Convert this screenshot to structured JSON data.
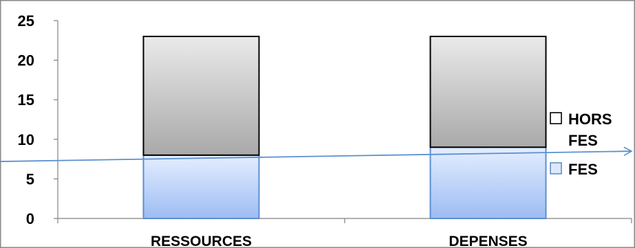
{
  "chart_data": {
    "type": "bar",
    "stacked": true,
    "categories": [
      "RESSOURCES",
      "DEPENSES"
    ],
    "series": [
      {
        "name": "FES",
        "values": [
          8,
          9
        ],
        "color": "#a9c6f5"
      },
      {
        "name": "HORS FES",
        "values": [
          15,
          14
        ],
        "color": "#bdbdbd"
      }
    ],
    "title": "",
    "xlabel": "",
    "ylabel": "",
    "ylim": [
      0,
      25
    ],
    "yticks": [
      0,
      5,
      10,
      15,
      20,
      25
    ],
    "grid": false,
    "legend": "right",
    "legend_order": [
      "HORS FES",
      "FES"
    ],
    "annotations": [
      {
        "type": "trend-arrow",
        "color": "#5b8fd0",
        "from_y": 7.2,
        "to_y": 8.5
      }
    ]
  }
}
